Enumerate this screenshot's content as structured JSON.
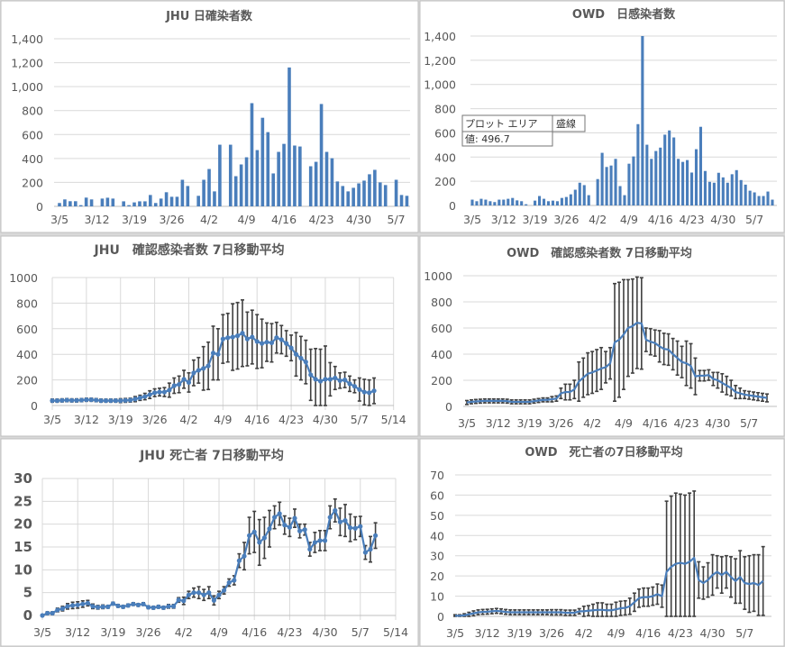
{
  "colors": {
    "series": "#4a7ebb",
    "error": "#404040",
    "grid": "#d9d9d9",
    "text": "#595959"
  },
  "tooltip": {
    "label1": "プロット エリア",
    "label2": "盛線",
    "value": "値: 496.7"
  },
  "chart_data": [
    {
      "id": "jhu-daily",
      "type": "bar",
      "title": "JHU  日確染者数",
      "xlabel": "",
      "ylabel": "",
      "x_start": "3/5",
      "ylim": [
        0,
        1400
      ],
      "yticks": [
        0,
        200,
        400,
        600,
        800,
        1000,
        1200,
        1400
      ],
      "ytick_labels": [
        "0",
        "200",
        "400",
        "600",
        "800",
        "1,000",
        "1,200",
        "1,400"
      ],
      "xtick_labels": [
        "3/5",
        "3/12",
        "3/19",
        "3/26",
        "4/2",
        "4/9",
        "4/16",
        "4/23",
        "4/30",
        "5/7"
      ],
      "grid": "horizontal",
      "values": [
        28,
        58,
        43,
        43,
        10,
        73,
        58,
        0,
        65,
        72,
        65,
        0,
        42,
        10,
        33,
        42,
        42,
        95,
        28,
        65,
        118,
        80,
        80,
        222,
        170,
        0,
        88,
        222,
        312,
        125,
        515,
        0,
        515,
        252,
        350,
        410,
        862,
        470,
        740,
        620,
        275,
        455,
        522,
        1160,
        508,
        500,
        0,
        335,
        372,
        855,
        455,
        402,
        208,
        170,
        125,
        155,
        192,
        215,
        268,
        305,
        200,
        178,
        0,
        222,
        95,
        88
      ]
    },
    {
      "id": "owd-daily",
      "type": "bar",
      "title": "OWD　日感染者数",
      "xlabel": "",
      "ylabel": "",
      "x_start": "3/5",
      "ylim": [
        0,
        1400
      ],
      "yticks": [
        0,
        200,
        400,
        600,
        800,
        1000,
        1200,
        1400
      ],
      "ytick_labels": [
        "0",
        "200",
        "400",
        "600",
        "800",
        "1,000",
        "1,200",
        "1,400"
      ],
      "xtick_labels": [
        "3/5",
        "3/12",
        "3/19",
        "3/26",
        "4/2",
        "4/9",
        "4/16",
        "4/23",
        "4/30",
        "5/7"
      ],
      "grid": "horizontal",
      "values": [
        48,
        35,
        55,
        48,
        35,
        28,
        48,
        48,
        55,
        62,
        42,
        35,
        10,
        0,
        40,
        78,
        55,
        35,
        40,
        35,
        62,
        70,
        92,
        130,
        188,
        168,
        85,
        0,
        218,
        435,
        318,
        330,
        385,
        160,
        85,
        345,
        405,
        672,
        1400,
        502,
        385,
        450,
        478,
        585,
        620,
        562,
        385,
        360,
        375,
        272,
        465,
        650,
        285,
        195,
        188,
        270,
        232,
        188,
        258,
        292,
        210,
        172,
        122,
        108,
        78,
        78,
        115,
        48
      ]
    },
    {
      "id": "jhu-cases-ma",
      "type": "line",
      "title": "JHU　確認感染者数  7日移動平均",
      "xlabel": "",
      "ylabel": "",
      "x_start": "3/5",
      "ylim": [
        0,
        1000
      ],
      "yticks": [
        0,
        200,
        400,
        600,
        800,
        1000
      ],
      "ytick_labels": [
        "0",
        "200",
        "400",
        "600",
        "800",
        "1000"
      ],
      "xtick_labels": [
        "3/5",
        "3/12",
        "3/19",
        "3/26",
        "4/2",
        "4/9",
        "4/16",
        "4/23",
        "4/30",
        "5/7",
        "5/14"
      ],
      "grid": "both",
      "markers": true,
      "values": [
        38,
        38,
        40,
        42,
        40,
        40,
        42,
        45,
        45,
        42,
        38,
        38,
        38,
        38,
        38,
        40,
        42,
        50,
        60,
        70,
        85,
        100,
        105,
        105,
        120,
        155,
        165,
        205,
        180,
        255,
        275,
        290,
        310,
        410,
        400,
        520,
        530,
        535,
        545,
        565,
        520,
        535,
        500,
        485,
        495,
        490,
        530,
        515,
        485,
        450,
        400,
        370,
        340,
        240,
        205,
        190,
        205,
        205,
        215,
        195,
        200,
        170,
        150,
        125,
        105,
        100,
        115
      ],
      "errors": [
        12,
        12,
        12,
        12,
        12,
        12,
        12,
        12,
        12,
        12,
        12,
        12,
        12,
        12,
        15,
        15,
        15,
        20,
        20,
        25,
        30,
        30,
        30,
        35,
        55,
        60,
        65,
        70,
        75,
        100,
        100,
        170,
        185,
        210,
        200,
        190,
        190,
        260,
        260,
        260,
        210,
        210,
        210,
        190,
        150,
        150,
        120,
        110,
        100,
        100,
        170,
        170,
        170,
        200,
        240,
        250,
        260,
        130,
        90,
        60,
        60,
        60,
        50,
        90,
        100,
        100,
        100
      ]
    },
    {
      "id": "owd-cases-ma",
      "type": "line",
      "title": "OWD　確認感染者数  7日移動平均",
      "xlabel": "",
      "ylabel": "",
      "x_start": "3/5",
      "ylim": [
        0,
        1000
      ],
      "yticks": [
        0,
        200,
        400,
        600,
        800,
        1000
      ],
      "ytick_labels": [
        "0",
        "200",
        "400",
        "600",
        "800",
        "1000"
      ],
      "xtick_labels": [
        "3/5",
        "3/12",
        "3/19",
        "3/26",
        "4/2",
        "4/9",
        "4/16",
        "4/23",
        "4/30",
        "5/7"
      ],
      "grid": "horizontal",
      "markers": false,
      "values": [
        30,
        35,
        38,
        40,
        42,
        42,
        42,
        42,
        42,
        40,
        35,
        35,
        35,
        35,
        35,
        40,
        45,
        50,
        50,
        55,
        60,
        100,
        110,
        110,
        130,
        190,
        220,
        250,
        260,
        275,
        290,
        300,
        330,
        490,
        510,
        550,
        600,
        615,
        640,
        635,
        510,
        495,
        485,
        460,
        440,
        435,
        400,
        370,
        340,
        330,
        310,
        230,
        235,
        235,
        240,
        210,
        200,
        180,
        160,
        140,
        110,
        100,
        90,
        85,
        80,
        75,
        70,
        65
      ],
      "errors": [
        15,
        15,
        15,
        15,
        15,
        15,
        15,
        15,
        15,
        15,
        15,
        15,
        15,
        15,
        15,
        15,
        15,
        15,
        15,
        20,
        20,
        40,
        60,
        60,
        70,
        150,
        150,
        160,
        160,
        160,
        160,
        120,
        120,
        450,
        440,
        420,
        370,
        360,
        350,
        350,
        90,
        100,
        100,
        120,
        120,
        120,
        120,
        130,
        120,
        170,
        170,
        140,
        40,
        40,
        40,
        50,
        60,
        70,
        70,
        60,
        50,
        40,
        30,
        30,
        30,
        30,
        30,
        30
      ]
    },
    {
      "id": "jhu-deaths-ma",
      "type": "line",
      "title": "JHU  死亡者  7日移動平均",
      "xlabel": "",
      "ylabel": "",
      "x_start": "3/5",
      "ylim": [
        0,
        30
      ],
      "yticks": [
        0,
        5,
        10,
        15,
        20,
        25,
        30
      ],
      "ytick_labels": [
        "0",
        "5",
        "10",
        "15",
        "20",
        "25",
        "30"
      ],
      "xtick_labels": [
        "3/5",
        "3/12",
        "3/19",
        "3/26",
        "4/2",
        "4/9",
        "4/16",
        "4/23",
        "4/30",
        "5/7",
        "5/14"
      ],
      "grid": "both",
      "markers": true,
      "values": [
        0,
        0.5,
        0.5,
        1.2,
        1.5,
        2,
        2.2,
        2.3,
        2.5,
        2.7,
        2,
        1.8,
        1.9,
        1.9,
        2.6,
        2.1,
        1.9,
        2.2,
        2.5,
        2.3,
        2.5,
        1.8,
        1.7,
        1.9,
        1.7,
        2,
        2,
        3.4,
        3.2,
        4.5,
        5,
        5,
        4.5,
        5,
        3.3,
        4.5,
        5.5,
        7.2,
        7.7,
        12,
        13,
        17.5,
        18.3,
        16,
        17,
        19,
        21.5,
        22.3,
        19.8,
        19.3,
        21.3,
        18.5,
        18.8,
        14.5,
        16,
        16.4,
        16.4,
        21.5,
        23,
        20.5,
        20.8,
        19.2,
        19.1,
        19.5,
        13.8,
        14.5,
        17.5
      ],
      "errors": [
        0.2,
        0.3,
        0.3,
        0.4,
        0.5,
        0.6,
        0.7,
        0.7,
        0.7,
        0.6,
        0.5,
        0.4,
        0.4,
        0.3,
        0.3,
        0.3,
        0.3,
        0.3,
        0.3,
        0.3,
        0.3,
        0.3,
        0.3,
        0.3,
        0.3,
        0.4,
        0.4,
        0.5,
        0.8,
        0.8,
        1,
        1.3,
        1.2,
        1.3,
        1,
        0.8,
        0.8,
        0.8,
        1,
        1.5,
        3,
        4,
        4.5,
        5,
        4.5,
        4,
        2.5,
        2.5,
        2,
        2,
        2,
        1.5,
        1.2,
        1.5,
        2.2,
        2.2,
        2.2,
        2.5,
        2.5,
        3,
        3.5,
        3,
        2.5,
        2.2,
        1.5,
        2.8,
        2.8
      ]
    },
    {
      "id": "owd-deaths-ma",
      "type": "line",
      "title": "OWD　死亡者の7日移動平均",
      "xlabel": "",
      "ylabel": "",
      "x_start": "3/5",
      "ylim": [
        0,
        70
      ],
      "yticks": [
        0,
        10,
        20,
        30,
        40,
        50,
        60,
        70
      ],
      "ytick_labels": [
        "0",
        "10",
        "20",
        "30",
        "40",
        "50",
        "60",
        "70"
      ],
      "xtick_labels": [
        "3/5",
        "3/12",
        "3/19",
        "3/26",
        "4/2",
        "4/9",
        "4/16",
        "4/23",
        "4/30",
        "5/7"
      ],
      "grid": "horizontal",
      "markers": false,
      "values": [
        0.3,
        0.3,
        0.5,
        1,
        1.5,
        2,
        2.2,
        2.3,
        2.5,
        2.7,
        2.5,
        2.2,
        2,
        2,
        2,
        2,
        2,
        2,
        2,
        2,
        2,
        2,
        2,
        2,
        1.8,
        1.8,
        1.8,
        2.5,
        2.5,
        2.8,
        3,
        3.2,
        3.2,
        3,
        3,
        3.5,
        4,
        4.2,
        5,
        7,
        9,
        9.5,
        9.5,
        10,
        11,
        10,
        22,
        24.5,
        26,
        26.5,
        26,
        27,
        29,
        18,
        16.5,
        18,
        20.5,
        22,
        20.5,
        22,
        19.5,
        17.5,
        19.5,
        16.5,
        16,
        16.5,
        15.5,
        17.5
      ],
      "errors": [
        0.5,
        0.5,
        0.8,
        1,
        1.2,
        1.2,
        1.2,
        1.2,
        1.2,
        1.2,
        1.2,
        1.2,
        1.2,
        1.2,
        1.2,
        1.2,
        1.2,
        1.2,
        1.2,
        1.2,
        1.2,
        1.3,
        1.3,
        1.3,
        1.3,
        1.3,
        1.3,
        1.3,
        2.5,
        2.5,
        3,
        3.5,
        3.5,
        3,
        3,
        3.5,
        3.5,
        3.5,
        4,
        4.5,
        4.5,
        4.5,
        4.5,
        4.5,
        5,
        5.5,
        35,
        35,
        35,
        34,
        34,
        34,
        33,
        9,
        8,
        8.5,
        10,
        8,
        9,
        8,
        10,
        11,
        13,
        13,
        14,
        14,
        15,
        17
      ]
    }
  ]
}
